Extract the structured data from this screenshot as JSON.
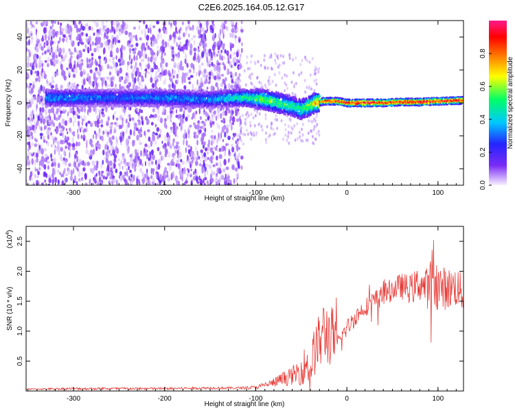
{
  "title": "C2E6.2025.164.05.12.G17",
  "colors": {
    "trace": "#e53935",
    "axis": "#000000",
    "background": "#ffffff"
  },
  "chart_data": [
    {
      "type": "heatmap",
      "xlabel": "Height of straight line (km)",
      "ylabel": "Frequency (Hz)",
      "xlim": [
        -352,
        128
      ],
      "ylim": [
        -50,
        50
      ],
      "xticks": [
        "-300",
        "-200",
        "-100",
        "0",
        "100"
      ],
      "xtick_values": [
        -300,
        -200,
        -100,
        0,
        100
      ],
      "yticks": [
        "-40",
        "-20",
        "0",
        "20",
        "40"
      ],
      "ytick_values": [
        -40,
        -20,
        0,
        20,
        40
      ],
      "colorbar": {
        "label": "Normalized spectral amplitude",
        "range": [
          0,
          1
        ],
        "ticks": [
          "0.0",
          "0.2",
          "0.4",
          "0.6",
          "0.8"
        ],
        "tick_values": [
          0.0,
          0.2,
          0.4,
          0.6,
          0.8
        ],
        "colormap": [
          "#f8f0ff",
          "#7b2cf5",
          "#2424ff",
          "#00c8ff",
          "#00ff66",
          "#ffff00",
          "#ff8000",
          "#ff0000",
          "#ff1a8c"
        ]
      },
      "ridge": {
        "x": [
          -330,
          -300,
          -250,
          -200,
          -150,
          -125,
          -110,
          -90,
          -75,
          -60,
          -50,
          -42,
          -35,
          -25,
          -10,
          0,
          20,
          40,
          60,
          80,
          100,
          128
        ],
        "freq": [
          3,
          3,
          3,
          3,
          2,
          3,
          3,
          2,
          0,
          -2,
          -4,
          -2,
          0,
          1,
          1,
          0,
          0,
          0,
          0.5,
          0.5,
          1,
          1.5
        ],
        "amplitude": [
          0.35,
          0.35,
          0.3,
          0.35,
          0.35,
          0.45,
          0.5,
          0.55,
          0.55,
          0.5,
          0.5,
          0.6,
          0.7,
          0.85,
          0.9,
          0.95,
          0.95,
          0.95,
          0.95,
          0.95,
          0.95,
          0.95
        ]
      },
      "noise_region_xlim": [
        -352,
        -120
      ]
    },
    {
      "type": "line",
      "xlabel": "Height of straight line (km)",
      "ylabel": "SNR (10 * v/v)",
      "y_multiplier": "(x10",
      "y_multiplier_exp": "4",
      "y_multiplier_close": ")",
      "xlim": [
        -352,
        128
      ],
      "ylim": [
        0,
        2.75
      ],
      "xticks": [
        "-300",
        "-200",
        "-100",
        "0",
        "100"
      ],
      "xtick_values": [
        -300,
        -200,
        -100,
        0,
        100
      ],
      "yticks": [
        "0.5",
        "1.0",
        "1.5",
        "2.0",
        "2.5"
      ],
      "ytick_values": [
        0.5,
        1.0,
        1.5,
        2.0,
        2.5
      ],
      "series": [
        {
          "color": "#e53935",
          "x": [
            -352,
            -300,
            -250,
            -200,
            -150,
            -120,
            -100,
            -90,
            -80,
            -70,
            -60,
            -50,
            -45,
            -40,
            -35,
            -30,
            -25,
            -20,
            -15,
            -10,
            0,
            10,
            20,
            30,
            40,
            50,
            60,
            70,
            80,
            90,
            95,
            100,
            110,
            120,
            128
          ],
          "y": [
            0.03,
            0.04,
            0.04,
            0.04,
            0.05,
            0.05,
            0.06,
            0.1,
            0.14,
            0.2,
            0.25,
            0.35,
            0.45,
            0.4,
            0.7,
            0.8,
            1.0,
            0.95,
            0.9,
            0.8,
            1.05,
            1.25,
            1.4,
            1.5,
            1.6,
            1.7,
            1.75,
            1.7,
            1.8,
            1.7,
            2.0,
            1.75,
            1.7,
            1.75,
            1.6
          ],
          "spread": [
            0.01,
            0.02,
            0.02,
            0.02,
            0.02,
            0.02,
            0.03,
            0.05,
            0.08,
            0.12,
            0.15,
            0.25,
            0.35,
            0.3,
            0.45,
            0.5,
            0.55,
            0.55,
            0.5,
            0.15,
            0.15,
            0.15,
            0.15,
            0.18,
            0.18,
            0.2,
            0.22,
            0.25,
            0.3,
            0.35,
            0.6,
            0.4,
            0.35,
            0.35,
            0.3
          ]
        }
      ]
    }
  ]
}
